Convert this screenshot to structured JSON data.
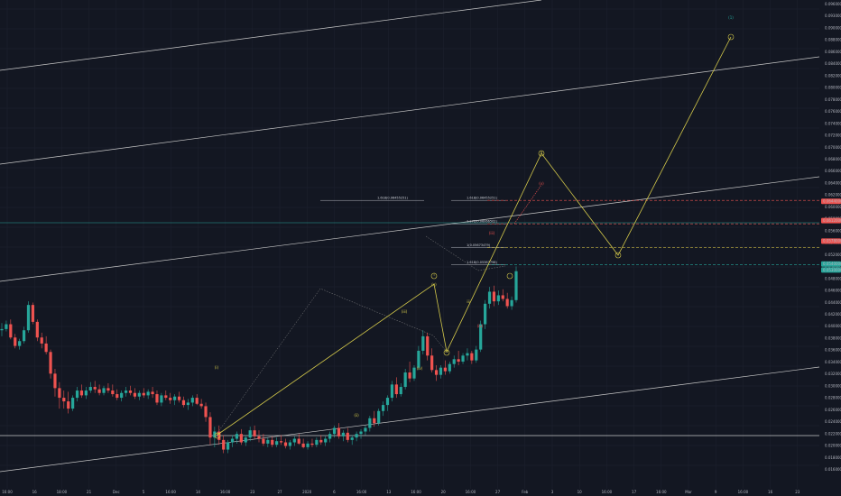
{
  "chart_data": {
    "type": "candlestick",
    "theme": {
      "background": "#131722",
      "grid": "#1e2230",
      "up": "#26a69a",
      "down": "#ef5350",
      "wave": "#d4c94a",
      "proj": "#e8e5a8",
      "fib_red": "#ef5350",
      "fib_gold": "#c8b441",
      "fib_green": "#26a69a",
      "channel": "#c8c8c8"
    },
    "ylim": [
      0.0158,
      0.0978
    ],
    "y_ticks": [
      "0.09600000",
      "0.09300000",
      "0.09000000",
      "0.08800000",
      "0.08600000",
      "0.08400000",
      "0.08200000",
      "0.08000000",
      "0.07800000",
      "0.07600000",
      "0.07400000",
      "0.07200000",
      "0.07000000",
      "0.06800000",
      "0.06600000",
      "0.06400000",
      "0.06200000",
      "0.06000000",
      "0.05800000",
      "0.05600000",
      "0.05400000",
      "0.05200000",
      "0.05000000",
      "0.04800000",
      "0.04600000",
      "0.04400000",
      "0.04200000",
      "0.04000000",
      "0.03800000",
      "0.03600000",
      "0.03400000",
      "0.03200000",
      "0.03000000",
      "0.02800000",
      "0.02600000",
      "0.02400000",
      "0.02200000",
      "0.02000000",
      "0.01800000",
      "0.01600000"
    ],
    "x_ticks": [
      "16:00",
      "16",
      "18:00",
      "21",
      "Dec",
      "5",
      "16:00",
      "14",
      "16:00",
      "23",
      "27",
      "2020",
      "6",
      "16:00",
      "13",
      "16:00",
      "20",
      "16:00",
      "27",
      "Feb",
      "3",
      "10",
      "16:00",
      "17",
      "16:00",
      "Mar",
      "9",
      "16:00",
      "16",
      "23"
    ],
    "price_tags": [
      {
        "value": "0.06440000",
        "price": 0.0644,
        "color": "#ef5350"
      },
      {
        "value": "0.06120000",
        "price": 0.0612,
        "color": "#ef5350"
      },
      {
        "value": "0.05780000",
        "price": 0.0578,
        "color": "#ef5350"
      },
      {
        "value": "0.05400000",
        "price": 0.054,
        "color": "#26a69a"
      },
      {
        "value": "0.05300000",
        "price": 0.053,
        "color": "#26a69a"
      }
    ],
    "fib_levels": [
      {
        "label": "1.618(0.06455251)",
        "price": 0.06455,
        "color": "#ef5350"
      },
      {
        "label": "1.272(0.06066502)",
        "price": 0.06066,
        "color": "#ef5350"
      },
      {
        "label": "1(0.05673479)",
        "price": 0.05673,
        "color": "#c8b441"
      },
      {
        "label": "1.618(0.05387798)",
        "price": 0.05388,
        "color": "#26a69a"
      }
    ],
    "fib_left_label": "1.618(0.06455251)",
    "wave_labels": [
      {
        "text": "(i)",
        "color": "#d4c94a"
      },
      {
        "text": "(ii)",
        "color": "#d4c94a"
      },
      {
        "text": "(iii)",
        "color": "#d4c94a"
      },
      {
        "text": "(iv)",
        "color": "#d4c94a"
      },
      {
        "text": "(v)",
        "color": "#d4c94a"
      },
      {
        "text": "(iii)",
        "color": "#ef5350"
      },
      {
        "text": "(iv)",
        "color": "#ef5350"
      },
      {
        "text": "(v)",
        "color": "#ef5350"
      },
      {
        "text": "(1)",
        "color": "#26a69a"
      },
      {
        "text": "ii",
        "color": "#d4c94a"
      },
      {
        "text": "i",
        "color": "#d4c94a"
      },
      {
        "text": "iii",
        "color": "#d4c94a"
      },
      {
        "text": "iv",
        "color": "#d4c94a"
      },
      {
        "text": "v",
        "color": "#d4c94a"
      }
    ],
    "series": {
      "ohlc": [
        [
          0.043,
          0.0442,
          0.042,
          0.0432
        ],
        [
          0.0432,
          0.0446,
          0.0428,
          0.044
        ],
        [
          0.044,
          0.0448,
          0.0415,
          0.0418
        ],
        [
          0.0418,
          0.0424,
          0.04,
          0.0404
        ],
        [
          0.0404,
          0.0416,
          0.0398,
          0.0412
        ],
        [
          0.0412,
          0.0436,
          0.0408,
          0.043
        ],
        [
          0.043,
          0.0478,
          0.0426,
          0.0472
        ],
        [
          0.0472,
          0.0476,
          0.044,
          0.0444
        ],
        [
          0.0444,
          0.0448,
          0.0412,
          0.0418
        ],
        [
          0.0418,
          0.0426,
          0.04,
          0.0408
        ],
        [
          0.0408,
          0.042,
          0.039,
          0.0394
        ],
        [
          0.0394,
          0.0398,
          0.035,
          0.0358
        ],
        [
          0.0358,
          0.0366,
          0.032,
          0.0334
        ],
        [
          0.0334,
          0.0344,
          0.03,
          0.0318
        ],
        [
          0.0318,
          0.033,
          0.03,
          0.0312
        ],
        [
          0.0312,
          0.0328,
          0.0292,
          0.03
        ],
        [
          0.03,
          0.0322,
          0.0296,
          0.0318
        ],
        [
          0.0318,
          0.0336,
          0.0312,
          0.033
        ],
        [
          0.033,
          0.034,
          0.0318,
          0.0322
        ],
        [
          0.0322,
          0.0336,
          0.0316,
          0.033
        ],
        [
          0.033,
          0.0344,
          0.0326,
          0.0336
        ],
        [
          0.0336,
          0.0346,
          0.0326,
          0.0332
        ],
        [
          0.0332,
          0.034,
          0.0322,
          0.0326
        ],
        [
          0.0326,
          0.0338,
          0.0322,
          0.0334
        ],
        [
          0.0334,
          0.0342,
          0.0326,
          0.033
        ],
        [
          0.033,
          0.034,
          0.032,
          0.0324
        ],
        [
          0.0324,
          0.0332,
          0.0314,
          0.0318
        ],
        [
          0.0318,
          0.033,
          0.0312,
          0.0326
        ],
        [
          0.0326,
          0.0336,
          0.032,
          0.033
        ],
        [
          0.033,
          0.0338,
          0.0322,
          0.0326
        ],
        [
          0.0326,
          0.0334,
          0.0316,
          0.032
        ],
        [
          0.032,
          0.033,
          0.0314,
          0.0326
        ],
        [
          0.0326,
          0.0334,
          0.0318,
          0.0322
        ],
        [
          0.0322,
          0.0332,
          0.0316,
          0.0328
        ],
        [
          0.0328,
          0.0336,
          0.0318,
          0.0324
        ],
        [
          0.0324,
          0.033,
          0.0306,
          0.031
        ],
        [
          0.031,
          0.0326,
          0.0304,
          0.0322
        ],
        [
          0.0322,
          0.033,
          0.0314,
          0.0318
        ],
        [
          0.0318,
          0.0326,
          0.0308,
          0.0314
        ],
        [
          0.0314,
          0.0324,
          0.0306,
          0.032
        ],
        [
          0.032,
          0.0328,
          0.031,
          0.0314
        ],
        [
          0.0314,
          0.032,
          0.0302,
          0.0306
        ],
        [
          0.0306,
          0.0316,
          0.0298,
          0.031
        ],
        [
          0.031,
          0.0322,
          0.0304,
          0.0318
        ],
        [
          0.0318,
          0.0324,
          0.0306,
          0.0308
        ],
        [
          0.0308,
          0.0316,
          0.03,
          0.0304
        ],
        [
          0.0304,
          0.031,
          0.0278,
          0.0286
        ],
        [
          0.0286,
          0.0294,
          0.024,
          0.0252
        ],
        [
          0.0252,
          0.027,
          0.0236,
          0.0262
        ],
        [
          0.0262,
          0.0272,
          0.024,
          0.0248
        ],
        [
          0.0248,
          0.0256,
          0.0226,
          0.0232
        ],
        [
          0.0232,
          0.0248,
          0.0226,
          0.0244
        ],
        [
          0.0244,
          0.0256,
          0.0236,
          0.025
        ],
        [
          0.025,
          0.0262,
          0.0242,
          0.0258
        ],
        [
          0.0258,
          0.0266,
          0.024,
          0.0244
        ],
        [
          0.0244,
          0.0256,
          0.0238,
          0.0252
        ],
        [
          0.0252,
          0.027,
          0.0246,
          0.0264
        ],
        [
          0.0264,
          0.0272,
          0.025,
          0.0254
        ],
        [
          0.0254,
          0.0264,
          0.0244,
          0.025
        ],
        [
          0.025,
          0.0258,
          0.0238,
          0.0242
        ],
        [
          0.0242,
          0.0252,
          0.0236,
          0.0248
        ],
        [
          0.0248,
          0.0254,
          0.0236,
          0.024
        ],
        [
          0.024,
          0.0252,
          0.0236,
          0.0246
        ],
        [
          0.0246,
          0.0256,
          0.024,
          0.0244
        ],
        [
          0.0244,
          0.025,
          0.0234,
          0.0238
        ],
        [
          0.0238,
          0.0248,
          0.0232,
          0.0244
        ],
        [
          0.0244,
          0.0254,
          0.0238,
          0.025
        ],
        [
          0.025,
          0.0258,
          0.024,
          0.0242
        ],
        [
          0.0242,
          0.025,
          0.0234,
          0.0236
        ],
        [
          0.0236,
          0.0246,
          0.0232,
          0.0242
        ],
        [
          0.0242,
          0.025,
          0.0236,
          0.024
        ],
        [
          0.024,
          0.0252,
          0.0236,
          0.0248
        ],
        [
          0.0248,
          0.0256,
          0.024,
          0.0244
        ],
        [
          0.0244,
          0.0254,
          0.0238,
          0.025
        ],
        [
          0.025,
          0.0262,
          0.0244,
          0.0258
        ],
        [
          0.0258,
          0.0272,
          0.0252,
          0.0268
        ],
        [
          0.0268,
          0.0276,
          0.025,
          0.0254
        ],
        [
          0.0254,
          0.0264,
          0.0246,
          0.026
        ],
        [
          0.026,
          0.0268,
          0.0244,
          0.0248
        ],
        [
          0.0248,
          0.0256,
          0.024,
          0.0252
        ],
        [
          0.0252,
          0.0262,
          0.0246,
          0.0258
        ],
        [
          0.0258,
          0.0266,
          0.025,
          0.0262
        ],
        [
          0.0262,
          0.0272,
          0.0256,
          0.0268
        ],
        [
          0.0268,
          0.0288,
          0.0262,
          0.0284
        ],
        [
          0.0284,
          0.0296,
          0.027,
          0.0276
        ],
        [
          0.0276,
          0.03,
          0.0272,
          0.0296
        ],
        [
          0.0296,
          0.0312,
          0.0288,
          0.0306
        ],
        [
          0.0306,
          0.0322,
          0.0296,
          0.0318
        ],
        [
          0.0318,
          0.0346,
          0.0312,
          0.034
        ],
        [
          0.034,
          0.0352,
          0.0318,
          0.0324
        ],
        [
          0.0324,
          0.0342,
          0.032,
          0.0336
        ],
        [
          0.0336,
          0.0366,
          0.0332,
          0.036
        ],
        [
          0.036,
          0.0378,
          0.0344,
          0.035
        ],
        [
          0.035,
          0.0372,
          0.0346,
          0.0368
        ],
        [
          0.0368,
          0.0404,
          0.0364,
          0.0396
        ],
        [
          0.0396,
          0.043,
          0.039,
          0.042
        ],
        [
          0.042,
          0.0426,
          0.038,
          0.0388
        ],
        [
          0.0388,
          0.04,
          0.036,
          0.0364
        ],
        [
          0.0364,
          0.0372,
          0.0346,
          0.0356
        ],
        [
          0.0356,
          0.0372,
          0.035,
          0.0368
        ],
        [
          0.0368,
          0.038,
          0.0356,
          0.0362
        ],
        [
          0.0362,
          0.0378,
          0.0358,
          0.0374
        ],
        [
          0.0374,
          0.0388,
          0.0368,
          0.0382
        ],
        [
          0.0382,
          0.0396,
          0.0372,
          0.0378
        ],
        [
          0.0378,
          0.0392,
          0.0374,
          0.0388
        ],
        [
          0.0388,
          0.04,
          0.038,
          0.0392
        ],
        [
          0.0392,
          0.0396,
          0.0374,
          0.038
        ],
        [
          0.038,
          0.0404,
          0.0376,
          0.0398
        ],
        [
          0.0398,
          0.0446,
          0.0394,
          0.044
        ],
        [
          0.044,
          0.048,
          0.0432,
          0.0474
        ],
        [
          0.0474,
          0.0502,
          0.0466,
          0.0494
        ],
        [
          0.0494,
          0.0504,
          0.047,
          0.0478
        ],
        [
          0.0478,
          0.0496,
          0.0472,
          0.0488
        ],
        [
          0.0488,
          0.0498,
          0.0478,
          0.0482
        ],
        [
          0.0482,
          0.0492,
          0.0466,
          0.047
        ],
        [
          0.047,
          0.0486,
          0.0464,
          0.048
        ],
        [
          0.048,
          0.0536,
          0.0476,
          0.0528
        ]
      ]
    }
  }
}
